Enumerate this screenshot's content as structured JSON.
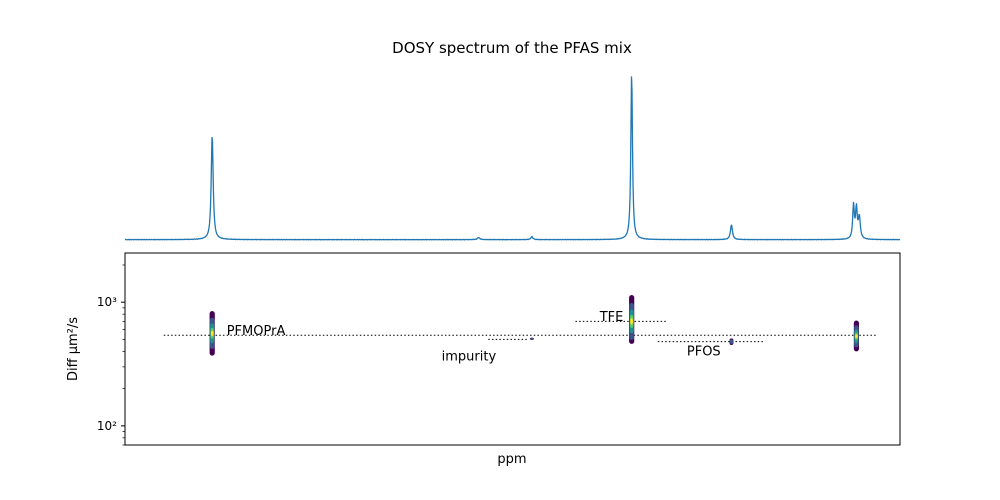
{
  "chart_data": [
    {
      "type": "line",
      "panel": "spectrum",
      "title": "DOSY spectrum of the PFAS mix",
      "xlabel": "",
      "ylabel": "",
      "x_axis_inverted": true,
      "xlim": [
        -60,
        -140
      ],
      "ylim": [
        0,
        1.05
      ],
      "ticks_shown": false,
      "color": "#1f77b4",
      "baseline": 0.02,
      "peaks": [
        {
          "x": -69.0,
          "height": 0.63,
          "width": 0.12
        },
        {
          "x": -96.5,
          "height": 0.012,
          "width": 0.15
        },
        {
          "x": -102.0,
          "height": 0.017,
          "width": 0.12
        },
        {
          "x": -112.3,
          "height": 1.0,
          "width": 0.1
        },
        {
          "x": -122.6,
          "height": 0.09,
          "width": 0.12
        },
        {
          "x": -135.2,
          "height": 0.2,
          "width": 0.1
        },
        {
          "x": -135.5,
          "height": 0.18,
          "width": 0.1
        },
        {
          "x": -135.8,
          "height": 0.13,
          "width": 0.12
        }
      ]
    },
    {
      "type": "scatter",
      "panel": "dosy",
      "xlabel": "ppm",
      "ylabel": "Diff    μm²/s",
      "x_axis_inverted": true,
      "xlim": [
        -60,
        -140
      ],
      "yscale": "log",
      "ylim": [
        70,
        2500
      ],
      "yticks": [
        100,
        1000
      ],
      "ytick_labels": [
        "10²",
        "10³"
      ],
      "colormap": "viridis",
      "blobs": [
        {
          "x": -69.0,
          "y_low": 370,
          "y_high": 850,
          "center": 560
        },
        {
          "x": -102.0,
          "y_low": 495,
          "y_high": 520,
          "center": 505
        },
        {
          "x": -112.3,
          "y_low": 460,
          "y_high": 1230,
          "center": 700
        },
        {
          "x": -122.6,
          "y_low": 450,
          "y_high": 510,
          "center": 480
        },
        {
          "x": -135.5,
          "y_low": 400,
          "y_high": 720,
          "center": 530
        }
      ],
      "guides": [
        {
          "label": "PFMOPrA",
          "y": 540,
          "x_from": -64.0,
          "x_to": -137.5,
          "label_x": -70.5,
          "label_y": 585
        },
        {
          "label": "TFE",
          "y": 700,
          "x_from": -106.5,
          "x_to": -116.0,
          "label_x": -109.0,
          "label_y": 760
        },
        {
          "label": "PFOS",
          "y": 480,
          "x_from": -115.0,
          "x_to": -126.0,
          "label_x": -118.0,
          "label_y": 400
        },
        {
          "label": "impurity",
          "y": 500,
          "x_from": -97.5,
          "x_to": -101.5,
          "label_x": -95.5,
          "label_y": 365
        }
      ]
    }
  ]
}
